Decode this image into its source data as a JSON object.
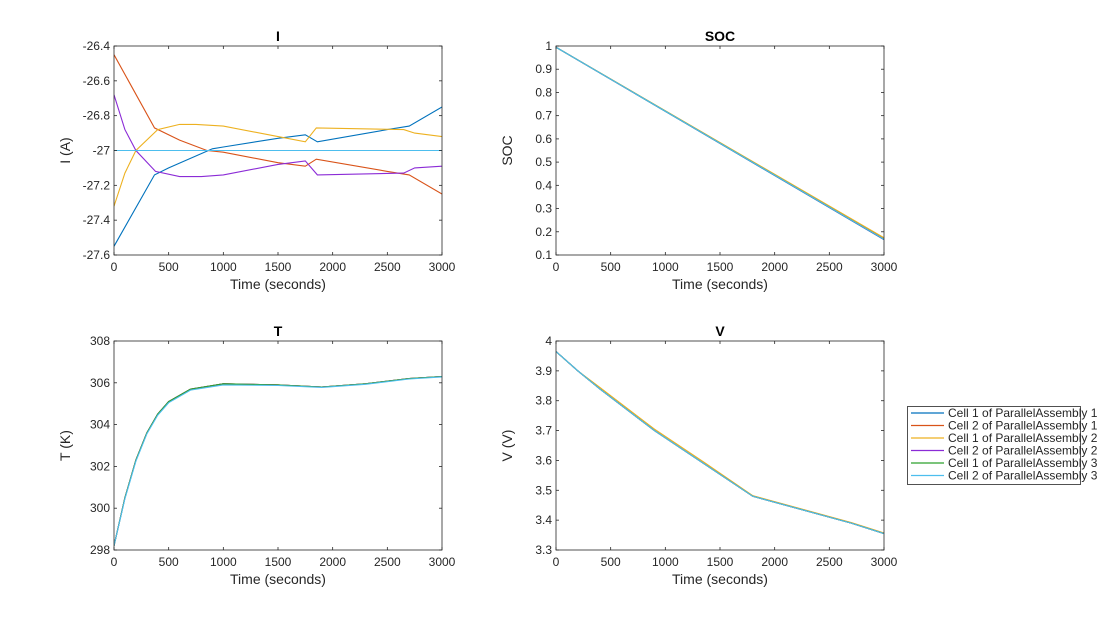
{
  "chart_data": [
    {
      "type": "line",
      "title": "I",
      "xlabel": "Time (seconds)",
      "ylabel": "I (A)",
      "xlim": [
        0,
        3000
      ],
      "ylim": [
        -27.6,
        -26.4
      ],
      "xticks": [
        0,
        500,
        1000,
        1500,
        2000,
        2500,
        3000
      ],
      "yticks": [
        -27.6,
        -27.4,
        -27.2,
        -27,
        -26.8,
        -26.6,
        -26.4
      ],
      "series": [
        {
          "x": [
            0,
            370,
            500,
            900,
            1000,
            1500,
            1750,
            1860,
            2500,
            2700,
            3000
          ],
          "y": [
            -27.55,
            -27.14,
            -27.1,
            -26.99,
            -26.98,
            -26.93,
            -26.91,
            -26.95,
            -26.88,
            -26.86,
            -26.75
          ]
        },
        {
          "x": [
            0,
            370,
            600,
            850,
            1000,
            1500,
            1750,
            1850,
            2500,
            2700,
            3000
          ],
          "y": [
            -26.45,
            -26.87,
            -26.94,
            -27.0,
            -27.01,
            -27.07,
            -27.09,
            -27.05,
            -27.12,
            -27.14,
            -27.25
          ]
        },
        {
          "x": [
            0,
            100,
            200,
            400,
            600,
            750,
            1000,
            1500,
            1750,
            1850,
            2650,
            2750,
            3000
          ],
          "y": [
            -27.32,
            -27.13,
            -27.0,
            -26.88,
            -26.85,
            -26.85,
            -26.86,
            -26.92,
            -26.95,
            -26.87,
            -26.88,
            -26.9,
            -26.92
          ]
        },
        {
          "x": [
            0,
            100,
            200,
            380,
            600,
            800,
            1000,
            1500,
            1750,
            1860,
            2650,
            2750,
            3000
          ],
          "y": [
            -26.68,
            -26.88,
            -27.0,
            -27.12,
            -27.15,
            -27.15,
            -27.14,
            -27.08,
            -27.06,
            -27.14,
            -27.13,
            -27.1,
            -27.09
          ]
        },
        {
          "x": [
            0,
            3000
          ],
          "y": [
            -27,
            -27
          ]
        },
        {
          "x": [
            0,
            3000
          ],
          "y": [
            -27,
            -27
          ]
        }
      ]
    },
    {
      "type": "line",
      "title": "SOC",
      "xlabel": "Time (seconds)",
      "ylabel": "SOC",
      "xlim": [
        0,
        3000
      ],
      "ylim": [
        0.1,
        1
      ],
      "xticks": [
        0,
        500,
        1000,
        1500,
        2000,
        2500,
        3000
      ],
      "yticks": [
        0.1,
        0.2,
        0.3,
        0.4,
        0.5,
        0.6,
        0.7,
        0.8,
        0.9,
        1
      ],
      "series": [
        {
          "x": [
            0,
            3000
          ],
          "y": [
            0.995,
            0.166
          ]
        },
        {
          "x": [
            0,
            3000
          ],
          "y": [
            0.995,
            0.17
          ]
        },
        {
          "x": [
            0,
            3000
          ],
          "y": [
            0.995,
            0.174
          ]
        },
        {
          "x": [
            0,
            3000
          ],
          "y": [
            0.995,
            0.167
          ]
        },
        {
          "x": [
            0,
            3000
          ],
          "y": [
            0.995,
            0.168
          ]
        },
        {
          "x": [
            0,
            3000
          ],
          "y": [
            0.995,
            0.168
          ]
        }
      ]
    },
    {
      "type": "line",
      "title": "T",
      "xlabel": "Time (seconds)",
      "ylabel": "T (K)",
      "xlim": [
        0,
        3000
      ],
      "ylim": [
        298,
        308
      ],
      "xticks": [
        0,
        500,
        1000,
        1500,
        2000,
        2500,
        3000
      ],
      "yticks": [
        298,
        300,
        302,
        304,
        306,
        308
      ],
      "series": [
        {
          "x": [
            0,
            100,
            200,
            300,
            400,
            500,
            700,
            1000,
            1500,
            1900,
            2300,
            2700,
            3000
          ],
          "y": [
            298.2,
            300.5,
            302.3,
            303.6,
            304.5,
            305.1,
            305.7,
            305.95,
            305.9,
            305.8,
            305.95,
            306.2,
            306.3
          ]
        },
        {
          "x": [
            0,
            100,
            200,
            300,
            400,
            500,
            700,
            1000,
            1500,
            1900,
            2300,
            2700,
            3000
          ],
          "y": [
            298.2,
            300.5,
            302.3,
            303.6,
            304.5,
            305.1,
            305.7,
            305.95,
            305.9,
            305.8,
            305.95,
            306.2,
            306.3
          ]
        },
        {
          "x": [
            0,
            100,
            200,
            300,
            400,
            500,
            700,
            1000,
            1500,
            1900,
            2300,
            2700,
            3000
          ],
          "y": [
            298.2,
            300.5,
            302.3,
            303.6,
            304.5,
            305.1,
            305.7,
            305.95,
            305.9,
            305.8,
            305.95,
            306.2,
            306.3
          ]
        },
        {
          "x": [
            0,
            100,
            200,
            300,
            400,
            500,
            700,
            1000,
            1500,
            1900,
            2300,
            2700,
            3000
          ],
          "y": [
            298.2,
            300.5,
            302.3,
            303.6,
            304.5,
            305.1,
            305.7,
            305.95,
            305.9,
            305.8,
            305.95,
            306.2,
            306.3
          ]
        },
        {
          "x": [
            0,
            100,
            200,
            300,
            400,
            500,
            700,
            1000,
            1500,
            1900,
            2300,
            2700,
            3000
          ],
          "y": [
            298.2,
            300.5,
            302.3,
            303.6,
            304.5,
            305.1,
            305.7,
            305.95,
            305.9,
            305.8,
            305.95,
            306.2,
            306.3
          ]
        },
        {
          "x": [
            0,
            100,
            200,
            300,
            400,
            500,
            700,
            1000,
            1500,
            1900,
            2300,
            2700,
            3000
          ],
          "y": [
            298.2,
            300.45,
            302.25,
            303.55,
            304.45,
            305.05,
            305.65,
            305.9,
            305.87,
            305.78,
            305.93,
            306.18,
            306.28
          ]
        }
      ]
    },
    {
      "type": "line",
      "title": "V",
      "xlabel": "Time (seconds)",
      "ylabel": "V (V)",
      "xlim": [
        0,
        3000
      ],
      "ylim": [
        3.3,
        4
      ],
      "xticks": [
        0,
        500,
        1000,
        1500,
        2000,
        2500,
        3000
      ],
      "yticks": [
        3.3,
        3.4,
        3.5,
        3.6,
        3.7,
        3.8,
        3.9,
        4
      ],
      "series": [
        {
          "x": [
            0,
            200,
            400,
            900,
            1350,
            1800,
            2700,
            3000
          ],
          "y": [
            3.965,
            3.9,
            3.84,
            3.7,
            3.59,
            3.48,
            3.39,
            3.355
          ]
        },
        {
          "x": [
            0,
            200,
            400,
            900,
            1350,
            1800,
            2700,
            3000
          ],
          "y": [
            3.965,
            3.9,
            3.84,
            3.7,
            3.59,
            3.48,
            3.39,
            3.355
          ]
        },
        {
          "x": [
            0,
            200,
            400,
            900,
            1350,
            1800,
            2700,
            3000
          ],
          "y": [
            3.965,
            3.9,
            3.845,
            3.705,
            3.595,
            3.482,
            3.392,
            3.357
          ]
        },
        {
          "x": [
            0,
            200,
            400,
            900,
            1350,
            1800,
            2700,
            3000
          ],
          "y": [
            3.965,
            3.9,
            3.84,
            3.7,
            3.59,
            3.48,
            3.39,
            3.355
          ]
        },
        {
          "x": [
            0,
            200,
            400,
            900,
            1350,
            1800,
            2700,
            3000
          ],
          "y": [
            3.965,
            3.9,
            3.84,
            3.7,
            3.59,
            3.48,
            3.39,
            3.355
          ]
        },
        {
          "x": [
            0,
            200,
            400,
            900,
            1350,
            1800,
            2700,
            3000
          ],
          "y": [
            3.965,
            3.9,
            3.84,
            3.7,
            3.59,
            3.48,
            3.39,
            3.355
          ]
        }
      ]
    }
  ],
  "legend": {
    "placement": "right",
    "entries": [
      "Cell 1 of ParallelAssembly 1",
      "Cell 2 of ParallelAssembly 1",
      "Cell 1 of ParallelAssembly 2",
      "Cell 2 of ParallelAssembly 2",
      "Cell 1 of ParallelAssembly 3",
      "Cell 2 of ParallelAssembly 3"
    ]
  },
  "colors": [
    "#0072BD",
    "#D95319",
    "#EDB120",
    "#8B2BD6",
    "#2CA02C",
    "#4DBEEE"
  ]
}
